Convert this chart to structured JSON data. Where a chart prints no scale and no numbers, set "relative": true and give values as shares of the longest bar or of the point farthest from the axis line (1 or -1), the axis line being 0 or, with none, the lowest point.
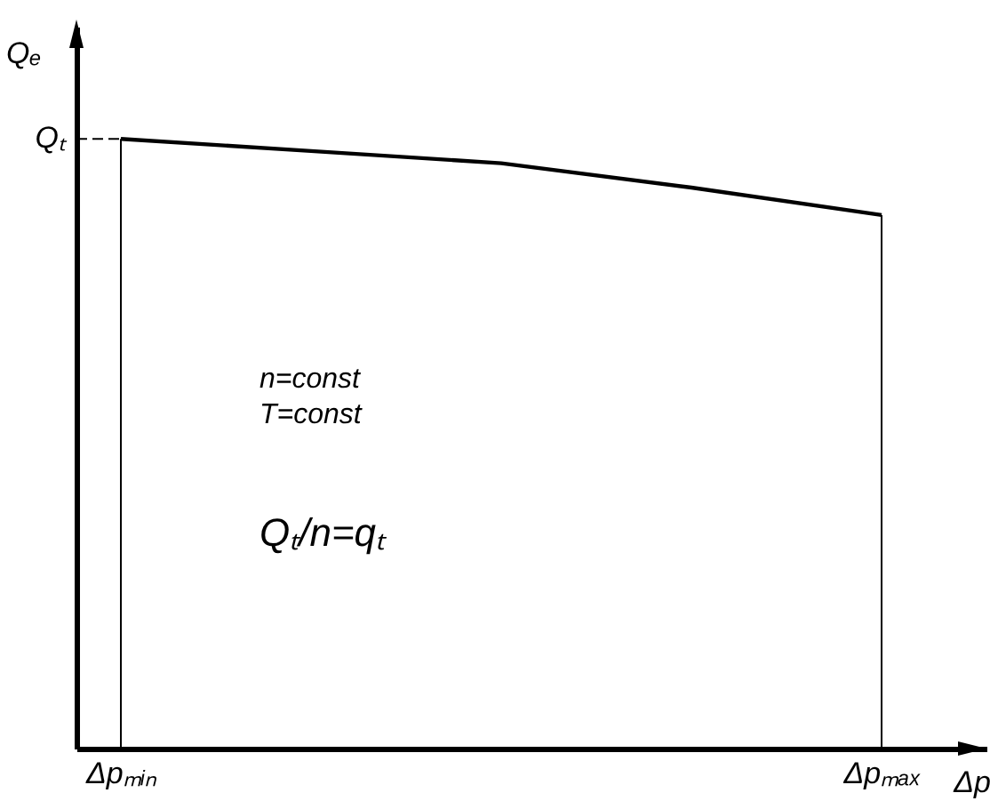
{
  "chart_data": {
    "type": "line",
    "relative": true,
    "xlabel": "Δp",
    "ylabel": "Qₑ",
    "categories": [
      "Δpₘᵢₙ",
      null,
      null,
      null,
      "Δpₘₐₓ"
    ],
    "series": [
      {
        "color": "#000000",
        "values": [
          1,
          0.98,
          0.96,
          0.92,
          0.875
        ]
      }
    ],
    "ref_lines": [
      {
        "axis": "y",
        "value": 1,
        "label": "Qₜ",
        "line_style": "dashed"
      },
      {
        "axis": "x",
        "value": "Δpₘᵢₙ"
      },
      {
        "axis": "x",
        "value": "Δpₘₐₓ"
      }
    ],
    "annotations": [
      "n=const",
      "T=const",
      "Qₜ/n=qₜ"
    ]
  }
}
